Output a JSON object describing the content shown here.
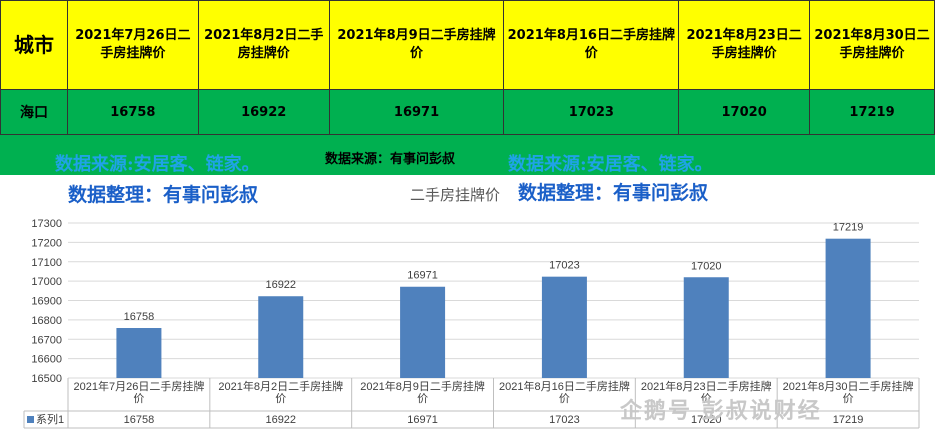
{
  "table": {
    "header_city": "城市",
    "headers": [
      "2021年7月26日二手房挂牌价",
      "2021年8月2日二手房挂牌价",
      "2021年8月9日二手房挂牌价",
      "2021年8月16日二手房挂牌价",
      "2021年8月23日二手房挂牌价",
      "2021年8月30日二手房挂牌价"
    ],
    "row_city": "海口",
    "row_values": [
      "16758",
      "16922",
      "16971",
      "17023",
      "17020",
      "17219"
    ]
  },
  "source_bar": {
    "center_text": "数据来源：有事问彭叔",
    "watermark_left_1": "数据来源:安居客、链家。",
    "watermark_left_2": "数据整理：有事问彭叔",
    "watermark_right_1": "数据来源:安居客、链家。",
    "watermark_right_2": "数据整理：有事问彭叔"
  },
  "brand_watermark": "企鹅号 彭叔说财经",
  "colors": {
    "header_bg": "#ffff00",
    "row_bg": "#00b050",
    "bar": "#4f81bd"
  },
  "chart_data": {
    "type": "bar",
    "title": "二手房挂牌价",
    "categories": [
      "2021年7月26日二手房挂牌价",
      "2021年8月2日二手房挂牌价",
      "2021年8月9日二手房挂牌价",
      "2021年8月16日二手房挂牌价",
      "2021年8月23日二手房挂牌价",
      "2021年8月30日二手房挂牌价"
    ],
    "series": [
      {
        "name": "系列1",
        "values": [
          16758,
          16922,
          16971,
          17023,
          17020,
          17219
        ]
      }
    ],
    "ylim": [
      16500,
      17300
    ],
    "yticks": [
      16500,
      16600,
      16700,
      16800,
      16900,
      17000,
      17100,
      17200,
      17300
    ],
    "grid": true,
    "data_table": true
  }
}
